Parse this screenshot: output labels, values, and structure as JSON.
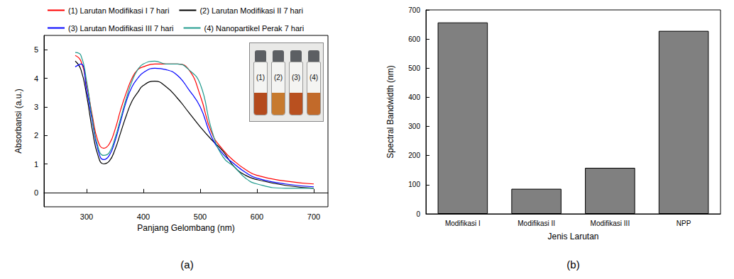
{
  "chart_data": [
    {
      "type": "line",
      "panel_label": "(a)",
      "x_label": "Panjang Gelombang (nm)",
      "y_label": "Absorbansi (a.u.)",
      "x": [
        280,
        290,
        300,
        310,
        320,
        330,
        340,
        350,
        360,
        370,
        380,
        390,
        400,
        420,
        440,
        460,
        480,
        500,
        520,
        540,
        560,
        580,
        600,
        650,
        700
      ],
      "series": [
        {
          "name": "(1) Larutan Modifikasi I 7 hari",
          "color": "#ff0000",
          "values": [
            4.8,
            4.6,
            3.8,
            2.7,
            1.8,
            1.55,
            1.7,
            2.2,
            2.9,
            3.5,
            4.0,
            4.3,
            4.4,
            4.5,
            4.5,
            4.5,
            4.3,
            3.4,
            2.1,
            1.5,
            1.1,
            0.8,
            0.6,
            0.4,
            0.3
          ]
        },
        {
          "name": "(2) Larutan Modifikasi II 7 hari",
          "color": "#000000",
          "values": [
            4.6,
            4.3,
            3.4,
            2.2,
            1.3,
            1.0,
            1.1,
            1.5,
            2.1,
            2.7,
            3.2,
            3.5,
            3.75,
            3.9,
            3.7,
            3.3,
            2.8,
            2.3,
            1.85,
            1.45,
            0.9,
            0.6,
            0.45,
            0.25,
            0.15
          ]
        },
        {
          "name": "(3) Larutan Modifikasi III 7 hari",
          "color": "#0000ff",
          "values": [
            4.4,
            4.5,
            3.6,
            2.5,
            1.5,
            1.15,
            1.3,
            1.8,
            2.5,
            3.2,
            3.7,
            4.0,
            4.2,
            4.35,
            4.3,
            4.1,
            3.6,
            3.0,
            1.95,
            1.35,
            1.0,
            0.7,
            0.5,
            0.3,
            0.2
          ]
        },
        {
          "name": "(4) Nanopartikel Perak 7 hari",
          "color": "#1f9a8c",
          "values": [
            4.9,
            4.8,
            3.9,
            2.6,
            1.6,
            1.3,
            1.4,
            1.9,
            2.6,
            3.3,
            3.9,
            4.3,
            4.5,
            4.6,
            4.5,
            4.5,
            4.3,
            3.8,
            2.2,
            1.25,
            0.9,
            0.5,
            0.3,
            0.15,
            0.15
          ]
        }
      ],
      "xlim": [
        225,
        725
      ],
      "xticks": [
        300,
        400,
        500,
        600,
        700
      ],
      "ylim": [
        -0.5,
        5.5
      ],
      "yticks": [
        0,
        1,
        2,
        3,
        4,
        5
      ],
      "grid": false,
      "legend": "top",
      "inset_labels": [
        "(1)",
        "(2)",
        "(3)",
        "(4)"
      ]
    },
    {
      "type": "bar",
      "panel_label": "(b)",
      "x_label": "Jenis Larutan",
      "y_label": "Spectral Bandwidth (nm)",
      "categories": [
        "Modifikasi I",
        "Modifikasi II",
        "Modifikasi III",
        "NPP"
      ],
      "values": [
        657,
        86,
        158,
        628
      ],
      "color": "#808080",
      "ylim": [
        0,
        700
      ],
      "yticks": [
        0,
        100,
        200,
        300,
        400,
        500,
        600,
        700
      ],
      "grid": false
    }
  ]
}
